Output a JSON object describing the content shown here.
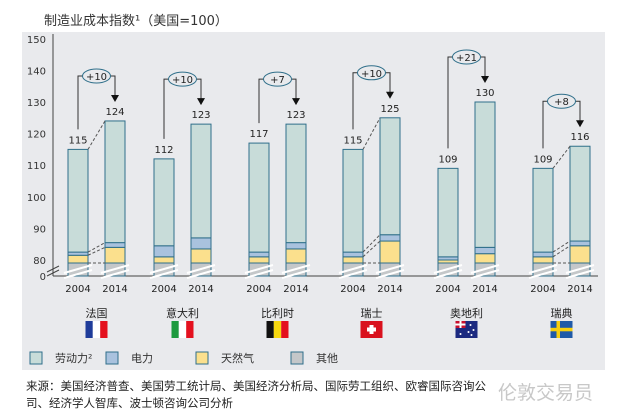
{
  "chart_data": {
    "type": "bar",
    "stacked": true,
    "title": "制造业成本指数¹（美国=100）",
    "ylabel": "",
    "ylim": [
      0,
      150
    ],
    "axis_break": [
      0,
      80
    ],
    "yticks": [
      "0",
      "80",
      "90",
      "100",
      "110",
      "120",
      "130",
      "140",
      "150"
    ],
    "ytick_values": [
      0,
      80,
      90,
      100,
      110,
      120,
      130,
      140,
      150
    ],
    "legend": [
      {
        "name": "劳动力²",
        "color": "#c8dcd9"
      },
      {
        "name": "电力",
        "color": "#a9c2de"
      },
      {
        "name": "天然气",
        "color": "#fbe08d"
      },
      {
        "name": "其他",
        "color": "#c4c7c9"
      }
    ],
    "groups": [
      {
        "country": "法国",
        "flag": "france",
        "change": "+10",
        "connector": true,
        "bars": [
          {
            "year": "2004",
            "total": 115,
            "other": 79,
            "gas": 81.5,
            "electricity": 82.5
          },
          {
            "year": "2014",
            "total": 124,
            "other": 79,
            "gas": 84,
            "electricity": 85.5
          }
        ]
      },
      {
        "country": "意大利",
        "flag": "italy",
        "change": "+10",
        "connector": false,
        "bars": [
          {
            "year": "2004",
            "total": 112,
            "other": 79,
            "gas": 81,
            "electricity": 84.5
          },
          {
            "year": "2014",
            "total": 123,
            "other": 79,
            "gas": 83.5,
            "electricity": 87
          }
        ]
      },
      {
        "country": "比利时",
        "flag": "belgium",
        "change": "+7",
        "connector": false,
        "bars": [
          {
            "year": "2004",
            "total": 117,
            "other": 79,
            "gas": 81,
            "electricity": 82.5
          },
          {
            "year": "2014",
            "total": 123,
            "other": 79,
            "gas": 83.5,
            "electricity": 85.5
          }
        ]
      },
      {
        "country": "瑞士",
        "flag": "switzerland",
        "change": "+10",
        "connector": true,
        "bars": [
          {
            "year": "2004",
            "total": 115,
            "other": 79,
            "gas": 81,
            "electricity": 82.5
          },
          {
            "year": "2014",
            "total": 125,
            "other": 79,
            "gas": 86,
            "electricity": 88
          }
        ]
      },
      {
        "country": "奥地利",
        "flag": "austria",
        "change": "+21",
        "connector": false,
        "bars": [
          {
            "year": "2004",
            "total": 109,
            "other": 79,
            "gas": 80,
            "electricity": 81
          },
          {
            "year": "2014",
            "total": 130,
            "other": 79,
            "gas": 82,
            "electricity": 84
          }
        ]
      },
      {
        "country": "瑞典",
        "flag": "sweden",
        "change": "+8",
        "connector": true,
        "bars": [
          {
            "year": "2004",
            "total": 109,
            "other": 79,
            "gas": 81,
            "electricity": 82.5
          },
          {
            "year": "2014",
            "total": 116,
            "other": 79,
            "gas": 84.5,
            "electricity": 86
          }
        ]
      }
    ]
  },
  "source": "来源：美国经济普查、美国劳工统计局、美国经济分析局、国际劳工组织、欧睿国际咨询公司、经济学人智库、波士顿咨询公司分析",
  "watermark": "伦敦交易员"
}
